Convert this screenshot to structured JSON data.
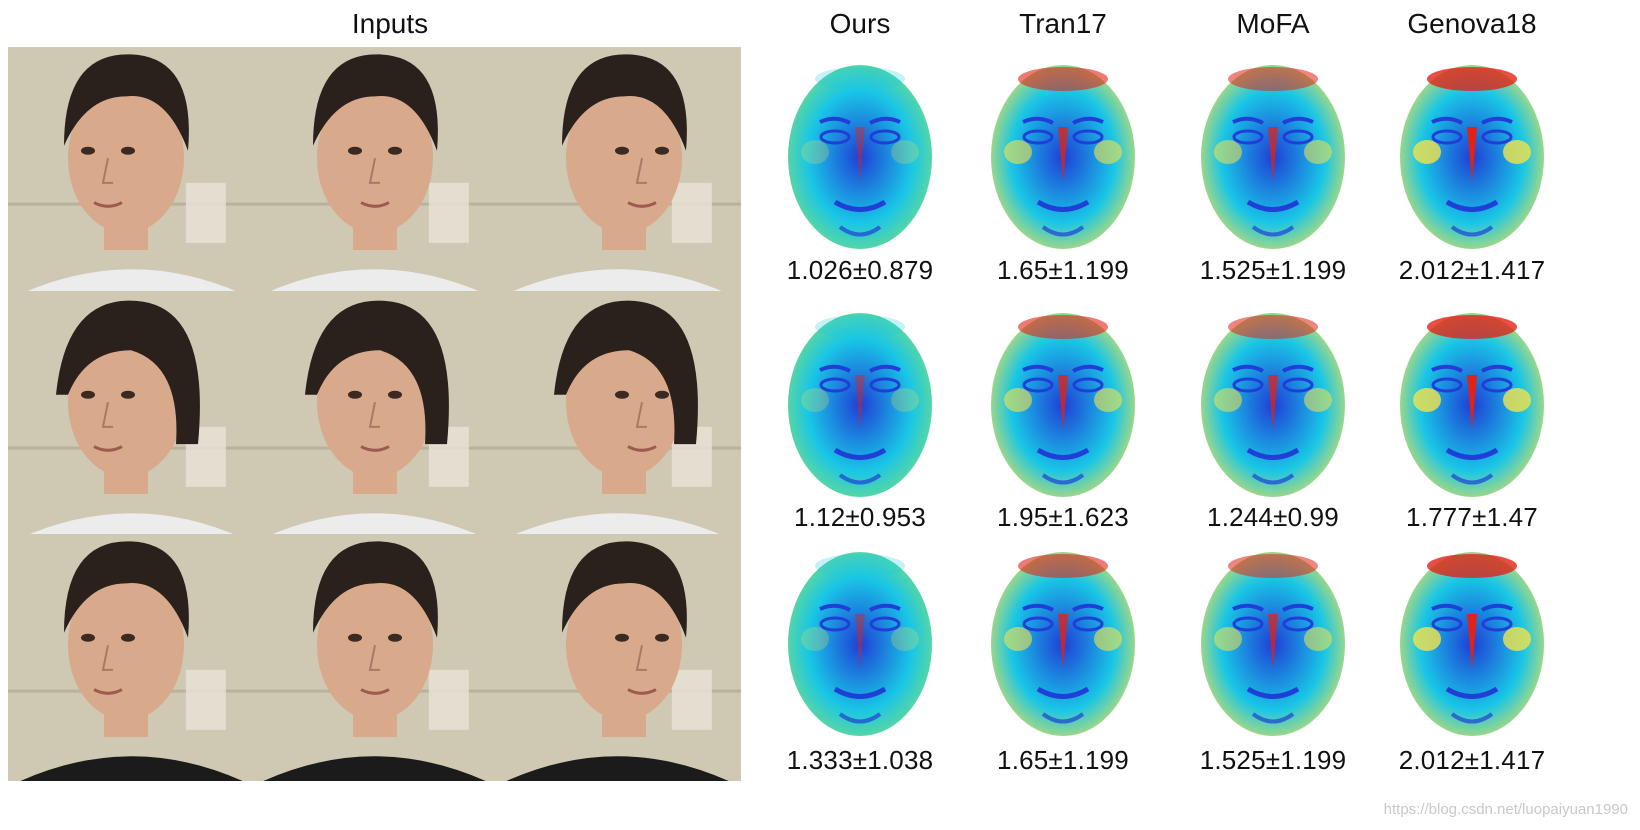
{
  "headers": {
    "inputs": "Inputs",
    "methods": [
      "Ours",
      "Tran17",
      "MoFA",
      "Genova18"
    ]
  },
  "rows": [
    {
      "subject": "man with swept dark hair",
      "errors": [
        "1.026±0.879",
        "1.65±1.199",
        "1.525±1.199",
        "2.012±1.417"
      ]
    },
    {
      "subject": "woman with short dark hair",
      "errors": [
        "1.12±0.953",
        "1.95±1.623",
        "1.244±0.99",
        "1.777±1.47"
      ]
    },
    {
      "subject": "man with short dark hair",
      "errors": [
        "1.333±1.038",
        "1.65±1.199",
        "1.525±1.199",
        "2.012±1.417"
      ]
    }
  ],
  "views": [
    "left profile",
    "frontal",
    "right profile"
  ],
  "colors": {
    "background_wall": "#cfc9b4",
    "hair": "#2a211c",
    "skin": "#d9a98c",
    "heat_low": "#1f3fd6",
    "heat_mid": "#19c6e6",
    "heat_high_green": "#7ee07a",
    "heat_yellow": "#f4e24a",
    "heat_red": "#e02318"
  },
  "watermark": "https://blog.csdn.net/luopaiyuan1990"
}
